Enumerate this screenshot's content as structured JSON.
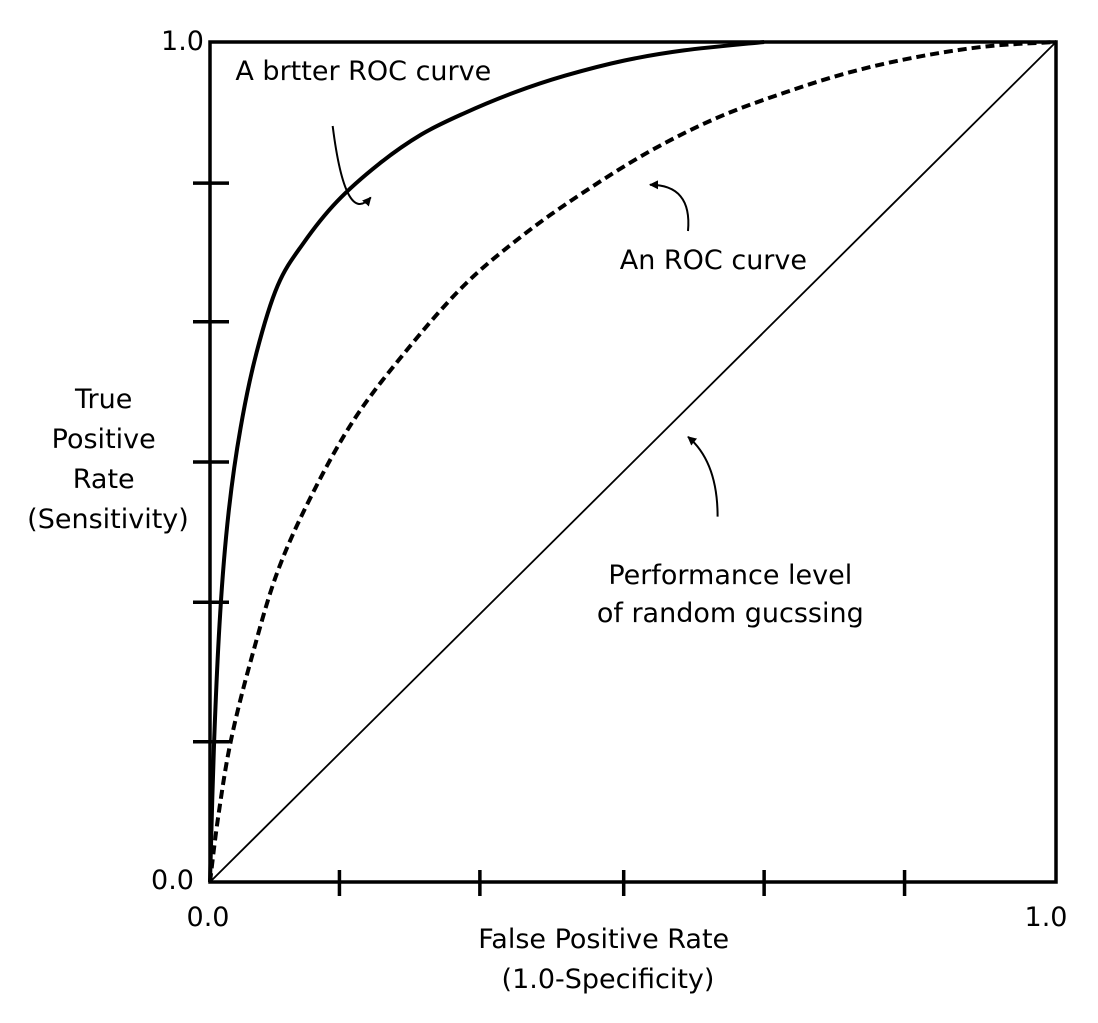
{
  "chart_data": {
    "type": "line",
    "title": "",
    "xlabel_lines": [
      "False Positive Rate",
      "(1.0-Specificity)"
    ],
    "ylabel_lines": [
      "True",
      "Positive",
      "Rate",
      "(Sensitivity)"
    ],
    "xlim": [
      0.0,
      1.0
    ],
    "ylim": [
      0.0,
      1.0
    ],
    "grid": false,
    "x_tick_labels": {
      "min": "0.0",
      "max": "1.0"
    },
    "y_tick_labels": {
      "min": "0.0",
      "max": "1.0"
    },
    "x_minor_ticks": [
      0.153,
      0.319,
      0.489,
      0.655,
      0.821
    ],
    "y_minor_ticks": [
      0.167,
      0.333,
      0.5,
      0.667,
      0.832
    ],
    "series": [
      {
        "id": "better-roc",
        "style": "solid-thick",
        "x": [
          0.0,
          0.005,
          0.012,
          0.022,
          0.036,
          0.055,
          0.08,
          0.11,
          0.15,
          0.2,
          0.25,
          0.3,
          0.36,
          0.42,
          0.49,
          0.56,
          0.655
        ],
        "y": [
          0.0,
          0.17,
          0.32,
          0.44,
          0.54,
          0.63,
          0.71,
          0.76,
          0.81,
          0.855,
          0.89,
          0.915,
          0.94,
          0.96,
          0.978,
          0.99,
          1.0
        ]
      },
      {
        "id": "roc",
        "style": "dashed",
        "x": [
          0.0,
          0.01,
          0.025,
          0.05,
          0.08,
          0.12,
          0.17,
          0.23,
          0.3,
          0.37,
          0.44,
          0.52,
          0.6,
          0.68,
          0.76,
          0.84,
          0.92,
          1.0
        ],
        "y": [
          0.0,
          0.08,
          0.17,
          0.27,
          0.37,
          0.46,
          0.55,
          0.63,
          0.71,
          0.77,
          0.82,
          0.87,
          0.91,
          0.94,
          0.965,
          0.983,
          0.995,
          1.0
        ]
      },
      {
        "id": "random",
        "style": "solid-thin",
        "x": [
          0.0,
          1.0
        ],
        "y": [
          0.0,
          1.0
        ]
      }
    ],
    "annotations": [
      {
        "id": "better-roc",
        "lines": [
          "A brtter ROC curve"
        ],
        "align": "start",
        "text_at": [
          0.03,
          0.955
        ],
        "arrow_from": [
          0.145,
          0.9
        ],
        "arrow_via": [
          0.16,
          0.78
        ],
        "arrow_to": [
          0.19,
          0.815
        ]
      },
      {
        "id": "roc",
        "lines": [
          "An ROC curve"
        ],
        "align": "middle",
        "text_at": [
          0.595,
          0.73
        ],
        "arrow_from": [
          0.565,
          0.775
        ],
        "arrow_via": [
          0.57,
          0.83
        ],
        "arrow_to": [
          0.52,
          0.83
        ]
      },
      {
        "id": "random",
        "lines": [
          "Performance level",
          "of random gucssing"
        ],
        "align": "middle",
        "text_at": [
          0.615,
          0.355
        ],
        "arrow_from": [
          0.6,
          0.435
        ],
        "arrow_via": [
          0.6,
          0.5
        ],
        "arrow_to": [
          0.565,
          0.53
        ]
      }
    ]
  }
}
